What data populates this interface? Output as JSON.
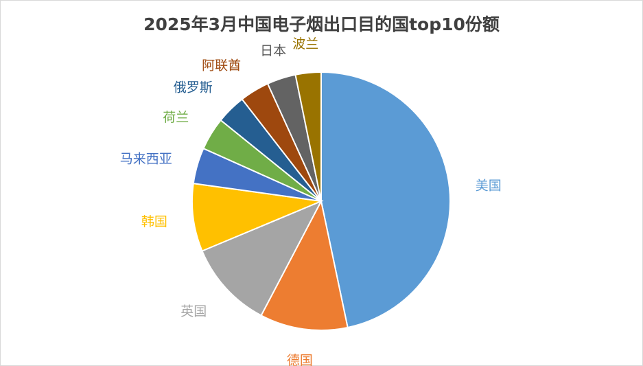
{
  "chart_data": {
    "type": "pie",
    "title": "2025年3月中国电子烟出口目的国top10份额",
    "start_angle_deg": 0,
    "direction": "clockwise",
    "categories": [
      "美国",
      "德国",
      "英国",
      "韩国",
      "马来西亚",
      "荷兰",
      "俄罗斯",
      "阿联酋",
      "日本",
      "波兰"
    ],
    "values": [
      46.7,
      11.0,
      11.0,
      8.5,
      4.5,
      4.1,
      3.7,
      3.7,
      3.6,
      3.2
    ],
    "unit": "%",
    "colors": [
      "#5B9BD5",
      "#ED7D31",
      "#A5A5A5",
      "#FFC000",
      "#4472C4",
      "#70AD47",
      "#255E91",
      "#9E480E",
      "#636363",
      "#997300"
    ],
    "label_colors": [
      "#5B9BD5",
      "#ED7D31",
      "#A5A5A5",
      "#FFC000",
      "#4472C4",
      "#70AD47",
      "#255E91",
      "#9E480E",
      "#595959",
      "#997300"
    ]
  }
}
